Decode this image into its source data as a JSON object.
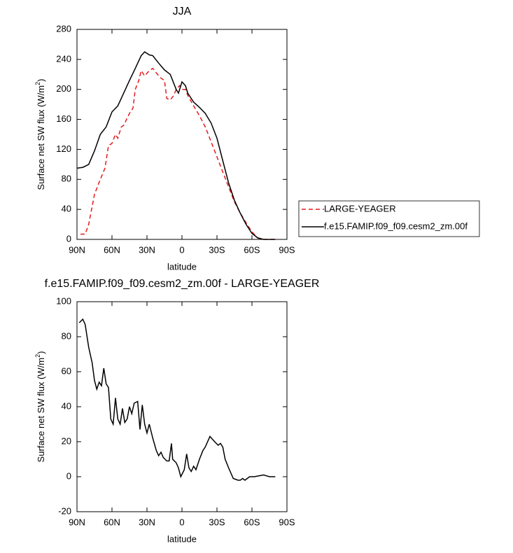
{
  "chart_data": [
    {
      "type": "line",
      "title": "JJA",
      "xlabel": "latitude",
      "ylabel": [
        "Surface net SW flux (W/m",
        "2",
        ")"
      ],
      "xlim": [
        90,
        -90
      ],
      "ylim": [
        0,
        280
      ],
      "xticks": [
        {
          "value": 90,
          "label": "90N"
        },
        {
          "value": 60,
          "label": "60N"
        },
        {
          "value": 30,
          "label": "30N"
        },
        0,
        {
          "value": -30,
          "label": "30S"
        },
        {
          "value": -60,
          "label": "60S"
        },
        {
          "value": -90,
          "label": "90S"
        }
      ],
      "yticks": [
        0,
        40,
        80,
        120,
        160,
        200,
        240,
        280
      ],
      "legend": "right",
      "series": [
        {
          "name": "LARGE-YEAGER",
          "color": "#e41a1c",
          "dash": true,
          "x": [
            87,
            83,
            80,
            75,
            70,
            66,
            63,
            60,
            57,
            55,
            52,
            50,
            45,
            42,
            40,
            37,
            35,
            32,
            28,
            25,
            22,
            18,
            15,
            13,
            10,
            7,
            5,
            2,
            0,
            -3,
            -5,
            -10,
            -15,
            -20,
            -25,
            -30,
            -35,
            -40,
            -45,
            -50,
            -55,
            -60,
            -65,
            -70,
            -80
          ],
          "values": [
            7,
            7,
            20,
            60,
            80,
            95,
            125,
            128,
            140,
            135,
            150,
            152,
            168,
            175,
            200,
            212,
            225,
            218,
            225,
            228,
            222,
            215,
            212,
            188,
            186,
            192,
            200,
            205,
            200,
            200,
            192,
            178,
            165,
            150,
            130,
            110,
            90,
            70,
            50,
            35,
            22,
            10,
            2,
            0,
            0
          ]
        },
        {
          "name": "f.e15.FAMIP.f09_f09.cesm2_zm.00f",
          "color": "#000000",
          "dash": false,
          "x": [
            90,
            85,
            80,
            75,
            70,
            65,
            60,
            55,
            50,
            45,
            40,
            35,
            32,
            28,
            25,
            20,
            15,
            10,
            5,
            3,
            0,
            -3,
            -5,
            -10,
            -15,
            -20,
            -25,
            -30,
            -35,
            -40,
            -45,
            -50,
            -55,
            -60,
            -65,
            -70,
            -75,
            -80
          ],
          "values": [
            95,
            96,
            100,
            118,
            140,
            150,
            170,
            178,
            195,
            212,
            228,
            245,
            250,
            246,
            245,
            235,
            226,
            220,
            200,
            195,
            210,
            205,
            195,
            183,
            176,
            168,
            155,
            135,
            105,
            75,
            52,
            35,
            20,
            8,
            2,
            0,
            0,
            0
          ]
        }
      ]
    },
    {
      "type": "line",
      "title": "f.e15.FAMIP.f09_f09.cesm2_zm.00f - LARGE-YEAGER",
      "xlabel": "latitude",
      "ylabel": [
        "Surface net SW flux (W/m",
        "2",
        ")"
      ],
      "xlim": [
        90,
        -90
      ],
      "ylim": [
        -20,
        100
      ],
      "xticks": [
        {
          "value": 90,
          "label": "90N"
        },
        {
          "value": 60,
          "label": "60N"
        },
        {
          "value": 30,
          "label": "30N"
        },
        0,
        {
          "value": -30,
          "label": "30S"
        },
        {
          "value": -60,
          "label": "60S"
        },
        {
          "value": -90,
          "label": "90S"
        }
      ],
      "yticks": [
        -20,
        0,
        20,
        40,
        60,
        80,
        100
      ],
      "series": [
        {
          "color": "#000000",
          "dash": false,
          "x": [
            88,
            85,
            83,
            80,
            77,
            75,
            73,
            71,
            69,
            67,
            65,
            63,
            61,
            59,
            57,
            55,
            53,
            51,
            49,
            47,
            45,
            43,
            41,
            38,
            36,
            34,
            32,
            30,
            28,
            25,
            22,
            20,
            18,
            16,
            13,
            11,
            9,
            8,
            5,
            3,
            1,
            -2,
            -4,
            -6,
            -8,
            -10,
            -12,
            -15,
            -18,
            -20,
            -24,
            -28,
            -31,
            -33,
            -35,
            -37,
            -40,
            -44,
            -48,
            -50,
            -52,
            -54,
            -56,
            -58,
            -62,
            -66,
            -70,
            -75,
            -80
          ],
          "values": [
            88,
            90,
            87,
            74,
            65,
            55,
            50,
            54,
            52,
            62,
            53,
            51,
            33,
            30,
            45,
            33,
            30,
            39,
            31,
            33,
            40,
            36,
            42,
            43,
            27,
            41,
            30,
            25,
            30,
            22,
            15,
            12,
            14,
            11,
            9,
            9,
            19,
            10,
            8,
            5,
            0,
            4,
            13,
            5,
            3,
            6,
            4,
            10,
            15,
            17,
            23,
            20,
            18,
            19,
            17,
            10,
            5,
            -1,
            -2,
            -2,
            -1,
            -2,
            -1,
            0,
            0,
            0.5,
            1,
            0,
            0
          ]
        }
      ]
    }
  ]
}
